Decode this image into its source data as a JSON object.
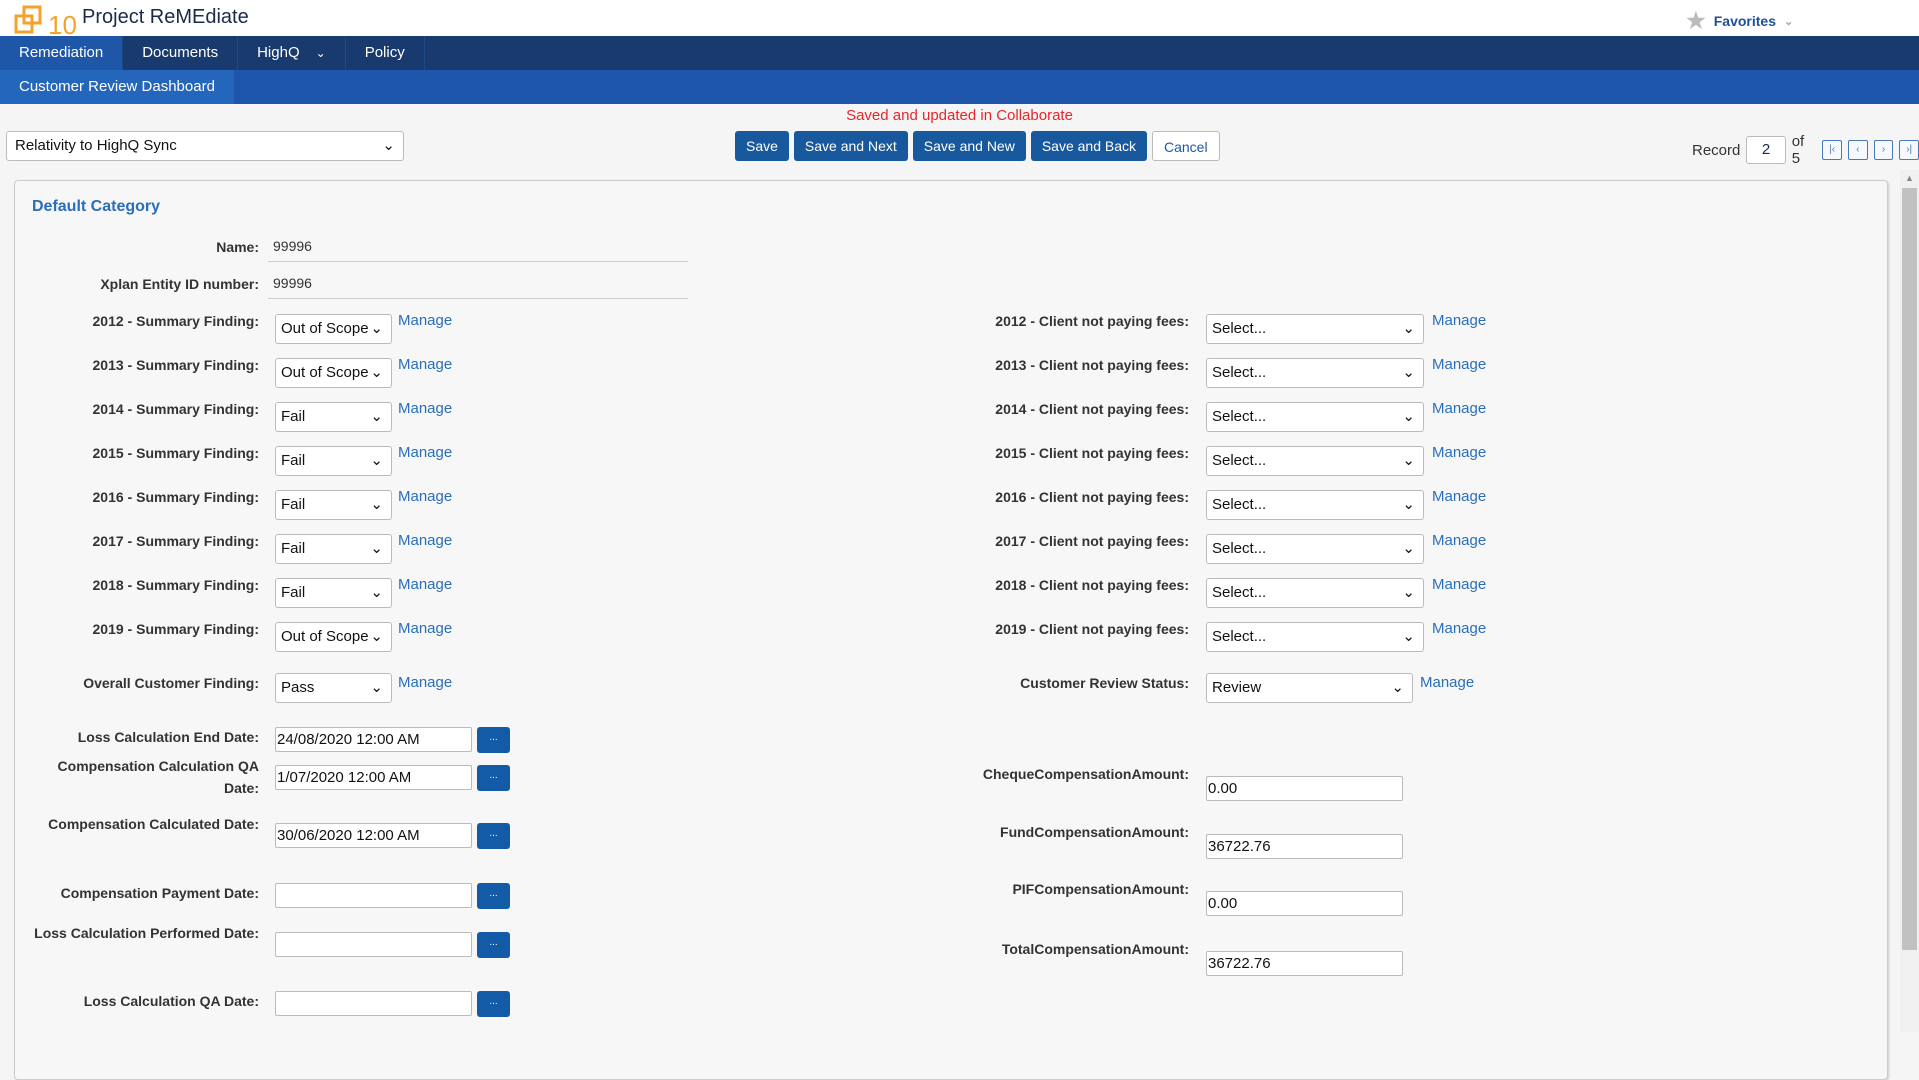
{
  "app": {
    "title": "Project ReMEdiate",
    "logo_text": "10",
    "favorites": "Favorites"
  },
  "nav": {
    "tabs": [
      {
        "label": "Remediation",
        "active": true
      },
      {
        "label": "Documents"
      },
      {
        "label": "HighQ",
        "dropdown": true
      },
      {
        "label": "Policy"
      }
    ],
    "subtab": "Customer Review Dashboard"
  },
  "message": "Saved and updated in Collaborate",
  "sync_select": "Relativity to HighQ Sync",
  "toolbar": {
    "save": "Save",
    "save_next": "Save and Next",
    "save_new": "Save and New",
    "save_back": "Save and Back",
    "cancel": "Cancel"
  },
  "record": {
    "label": "Record",
    "current": "2",
    "of": "of 5"
  },
  "form": {
    "category": "Default Category",
    "name": {
      "label": "Name:",
      "value": "99996"
    },
    "xplan": {
      "label": "Xplan Entity ID number:",
      "value": "99996"
    },
    "manage": "Manage",
    "summary": [
      {
        "label": "2012 - Summary Finding:",
        "value": "Out of Scope"
      },
      {
        "label": "2013 - Summary Finding:",
        "value": "Out of Scope"
      },
      {
        "label": "2014 - Summary Finding:",
        "value": "Fail"
      },
      {
        "label": "2015 - Summary Finding:",
        "value": "Fail"
      },
      {
        "label": "2016 - Summary Finding:",
        "value": "Fail"
      },
      {
        "label": "2017 - Summary Finding:",
        "value": "Fail"
      },
      {
        "label": "2018 - Summary Finding:",
        "value": "Fail"
      },
      {
        "label": "2019 - Summary Finding:",
        "value": "Out of Scope"
      }
    ],
    "fees": [
      {
        "label": "2012 - Client not paying fees:",
        "value": "Select..."
      },
      {
        "label": "2013 - Client not paying fees:",
        "value": "Select..."
      },
      {
        "label": "2014 - Client not paying fees:",
        "value": "Select..."
      },
      {
        "label": "2015 - Client not paying fees:",
        "value": "Select..."
      },
      {
        "label": "2016 - Client not paying fees:",
        "value": "Select..."
      },
      {
        "label": "2017 - Client not paying fees:",
        "value": "Select..."
      },
      {
        "label": "2018 - Client not paying fees:",
        "value": "Select..."
      },
      {
        "label": "2019 - Client not paying fees:",
        "value": "Select..."
      }
    ],
    "overall": {
      "label": "Overall Customer Finding:",
      "value": "Pass"
    },
    "status": {
      "label": "Customer Review Status:",
      "value": "Review"
    },
    "dates": [
      {
        "label": "Loss Calculation End Date:",
        "value": "24/08/2020 12:00 AM"
      },
      {
        "label": "Compensation Calculation QA Date:",
        "value": "1/07/2020 12:00 AM"
      },
      {
        "label": "Compensation Calculated Date:",
        "value": "30/06/2020 12:00 AM"
      },
      {
        "label": "Compensation Payment Date:",
        "value": ""
      },
      {
        "label": "Loss Calculation Performed Date:",
        "value": ""
      },
      {
        "label": "Loss Calculation QA Date:",
        "value": ""
      }
    ],
    "date_button": "...",
    "amounts": [
      {
        "label": "ChequeCompensationAmount:",
        "value": "0.00"
      },
      {
        "label": "FundCompensationAmount:",
        "value": "36722.76"
      },
      {
        "label": "PIFCompensationAmount:",
        "value": "0.00"
      },
      {
        "label": "TotalCompensationAmount:",
        "value": "36722.76"
      }
    ]
  }
}
